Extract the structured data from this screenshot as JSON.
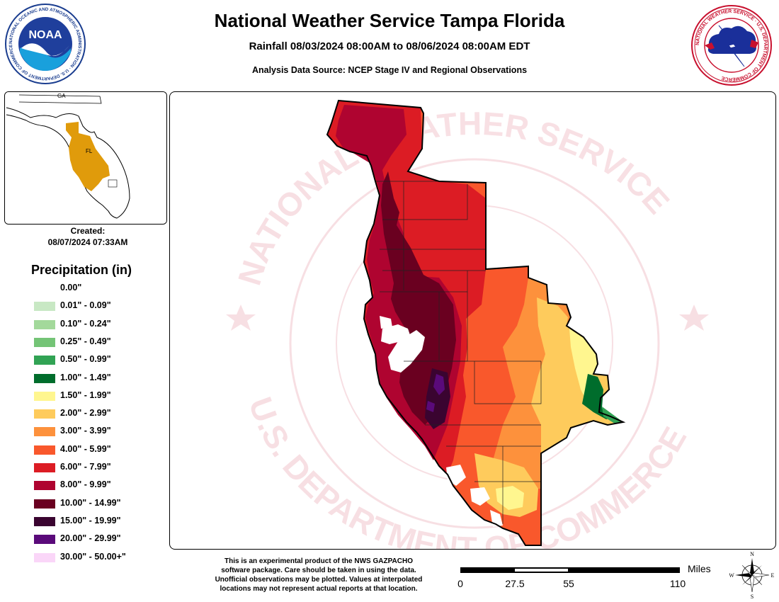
{
  "header": {
    "title": "National Weather Service Tampa Florida",
    "subtitle": "Rainfall 08/03/2024 08:00AM to 08/06/2024 08:00AM EDT",
    "source": "Analysis Data Source: NCEP Stage IV and Regional Observations"
  },
  "logos": {
    "noaa_text": "NOAA",
    "noaa_ring_text": "NATIONAL OCEANIC AND ATMOSPHERIC ADMINISTRATION · U.S. DEPARTMENT OF COMMERCE",
    "nws_ring_text": "NATIONAL WEATHER SERVICE · U.S. DEPARTMENT OF COMMERCE"
  },
  "inset": {
    "label_ga": "GA",
    "label_fl": "FL",
    "highlight_color": "#E09B0B"
  },
  "created": {
    "label": "Created:",
    "timestamp": "08/07/2024 07:33AM"
  },
  "legend": {
    "title": "Precipitation (in)",
    "items": [
      {
        "label": "0.00\"",
        "color": "#FFFFFF"
      },
      {
        "label": "0.01\" - 0.09\"",
        "color": "#C8E8C4"
      },
      {
        "label": "0.10\" - 0.24\"",
        "color": "#A3D99B"
      },
      {
        "label": "0.25\" - 0.49\"",
        "color": "#74C476"
      },
      {
        "label": "0.50\" - 0.99\"",
        "color": "#31A354"
      },
      {
        "label": "1.00\" - 1.49\"",
        "color": "#006D2C"
      },
      {
        "label": "1.50\" - 1.99\"",
        "color": "#FFF68F"
      },
      {
        "label": "2.00\" - 2.99\"",
        "color": "#FECB5C"
      },
      {
        "label": "3.00\" - 3.99\"",
        "color": "#FD913C"
      },
      {
        "label": "4.00\" - 5.99\"",
        "color": "#F9582C"
      },
      {
        "label": "6.00\" - 7.99\"",
        "color": "#DC1C24"
      },
      {
        "label": "8.00\" - 9.99\"",
        "color": "#AF0430"
      },
      {
        "label": "10.00\" - 14.99\"",
        "color": "#6A0020"
      },
      {
        "label": "15.00\" - 19.99\"",
        "color": "#3A0430"
      },
      {
        "label": "20.00\" - 29.99\"",
        "color": "#5A0A7A"
      },
      {
        "label": "30.00\" - 50.00+\"",
        "color": "#FAD6F8"
      }
    ]
  },
  "watermark": {
    "top_text": "NATIONAL WEATHER SERVICE",
    "bottom_text": "U.S. DEPARTMENT OF COMMERCE"
  },
  "disclaimer": {
    "lines": [
      "This is an experimental product of the NWS GAZPACHO",
      "software package. Care should be taken in using the data.",
      "Unofficial observations may be plotted. Values at interpolated",
      "locations may not represent actual reports at that location."
    ]
  },
  "scale": {
    "unit": "Miles",
    "ticks": [
      "0",
      "27.5",
      "55",
      "110"
    ]
  },
  "compass": {
    "n": "N",
    "s": "S",
    "e": "E",
    "w": "W"
  }
}
